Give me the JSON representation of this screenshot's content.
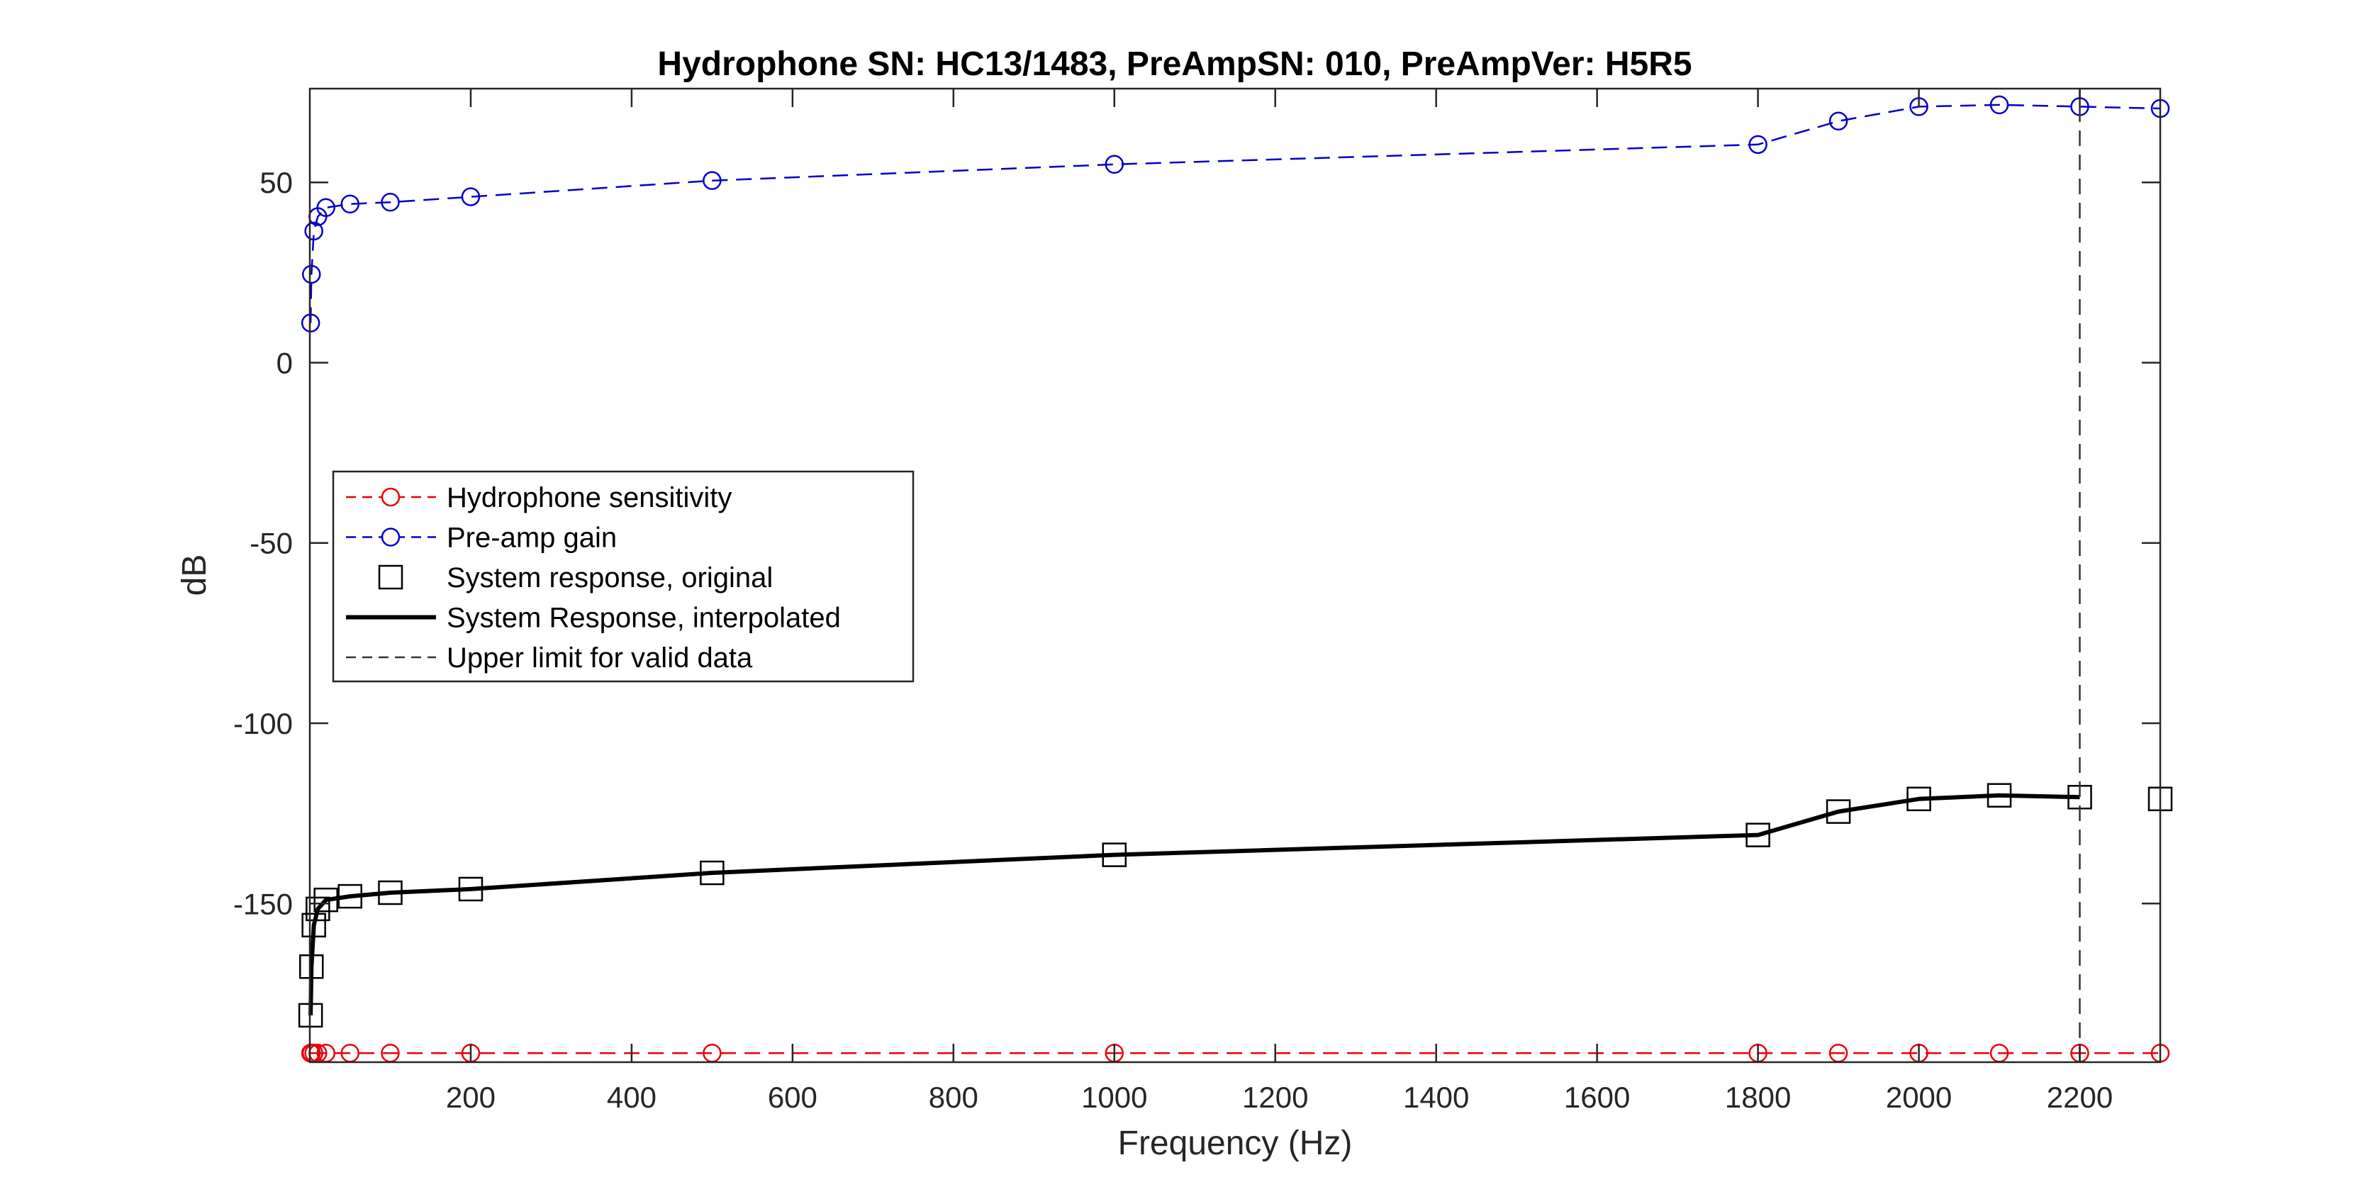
{
  "chart_data": {
    "type": "line",
    "title": "Hydrophone SN: HC13/1483, PreAmpSN: 010, PreAmpVer: H5R5",
    "xlabel": "Frequency (Hz)",
    "ylabel": "dB",
    "xlim": [
      0,
      2300
    ],
    "ylim": [
      -194,
      76
    ],
    "xticks": [
      200,
      400,
      600,
      800,
      1000,
      1200,
      1400,
      1600,
      1800,
      2000,
      2200
    ],
    "yticks": [
      -150,
      -100,
      -50,
      0,
      50
    ],
    "grid": false,
    "legend_position": "middle-left",
    "series": [
      {
        "name": "Hydrophone sensitivity",
        "color": "#e8000b",
        "line": "dashed",
        "marker": "circle",
        "x": [
          1,
          2,
          5,
          10,
          20,
          50,
          100,
          200,
          500,
          1000,
          1800,
          1900,
          2000,
          2100,
          2200,
          2300
        ],
        "y": [
          -191.5,
          -191.5,
          -191.5,
          -191.5,
          -191.5,
          -191.5,
          -191.5,
          -191.5,
          -191.5,
          -191.5,
          -191.5,
          -191.5,
          -191.5,
          -191.5,
          -191.5,
          -191.5
        ]
      },
      {
        "name": "Pre-amp gain",
        "color": "#0000cc",
        "line": "dashed",
        "marker": "circle",
        "x": [
          1,
          2,
          5,
          10,
          20,
          50,
          100,
          200,
          500,
          1000,
          1800,
          1900,
          2000,
          2100,
          2200,
          2300
        ],
        "y": [
          11,
          24.5,
          36.5,
          40.5,
          43,
          44,
          44.5,
          46,
          50.5,
          55,
          60.5,
          67,
          71,
          71.5,
          71,
          70.5
        ]
      },
      {
        "name": "System response, original",
        "color": "#000000",
        "line": "none",
        "marker": "square",
        "x": [
          1,
          2,
          5,
          10,
          20,
          50,
          100,
          200,
          500,
          1000,
          1800,
          1900,
          2000,
          2100,
          2200,
          2300
        ],
        "y": [
          -181,
          -167.5,
          -156,
          -151.5,
          -149,
          -148,
          -147,
          -146,
          -141.5,
          -136.5,
          -131,
          -124.5,
          -121,
          -120,
          -120.5,
          -121
        ]
      },
      {
        "name": "System Response, interpolated",
        "color": "#000000",
        "line": "solid",
        "marker": "none",
        "x": [
          1,
          2,
          5,
          10,
          20,
          50,
          100,
          200,
          500,
          1000,
          1800,
          1900,
          2000,
          2100,
          2200
        ],
        "y": [
          -181,
          -167.5,
          -156,
          -151.5,
          -149,
          -148,
          -147,
          -146,
          -141.5,
          -136.5,
          -131,
          -124.5,
          -121,
          -120,
          -120.5
        ]
      },
      {
        "name": "Upper limit for valid data",
        "color": "#333333",
        "line": "dashed",
        "marker": "none",
        "x": [
          2200,
          2200
        ],
        "y": [
          -194,
          76
        ]
      }
    ]
  }
}
